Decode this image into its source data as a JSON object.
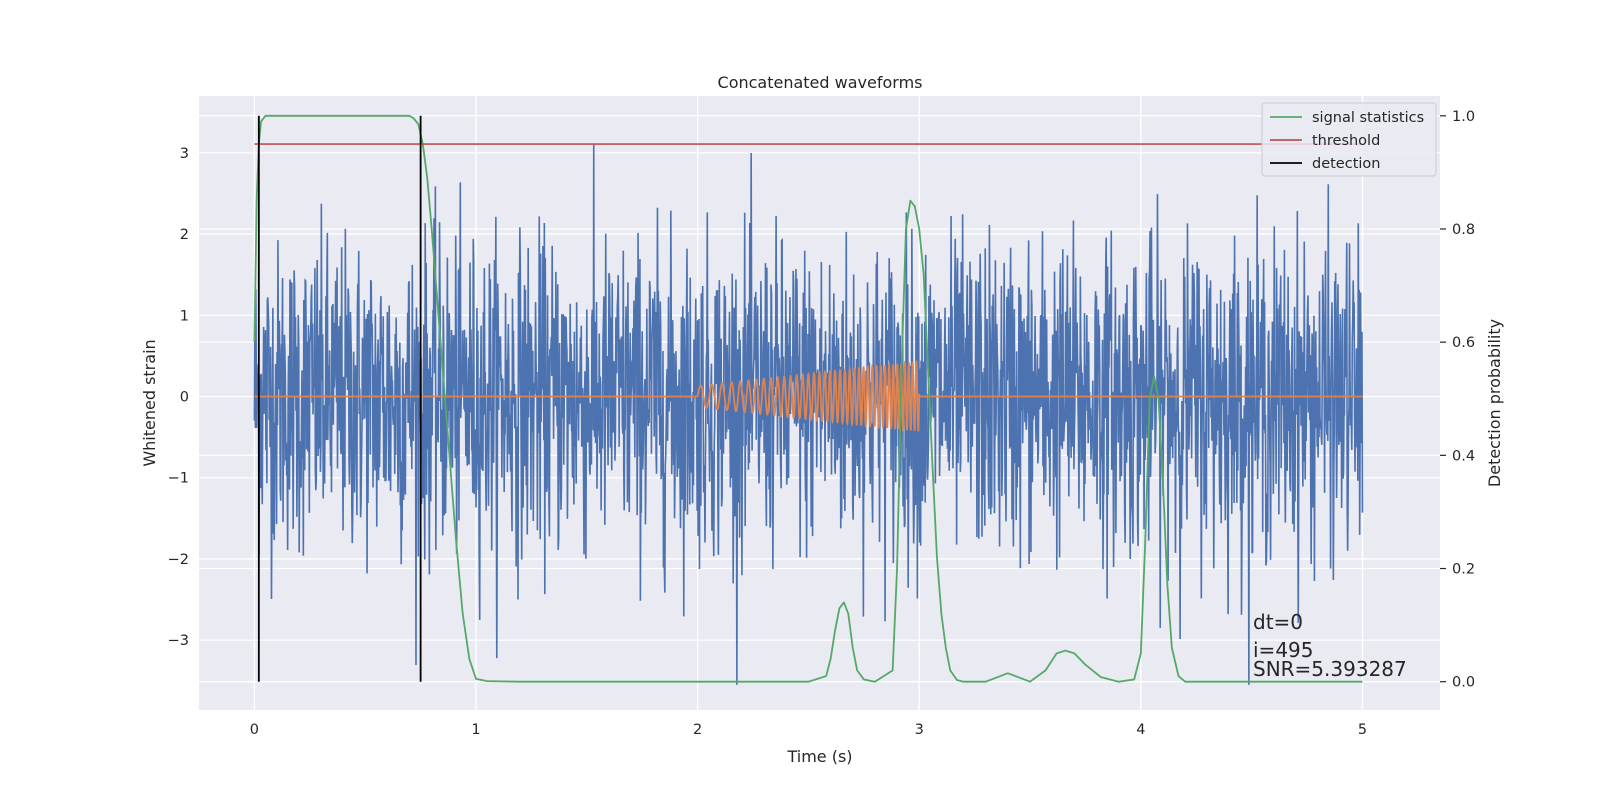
{
  "chart_data": {
    "type": "line",
    "title": "Concatenated waveforms",
    "xlabel": "Time (s)",
    "ylabel": "Whitened strain",
    "y2label": "Detection probability",
    "xlim": [
      -0.25,
      5.35
    ],
    "ylim": [
      -3.86,
      3.7
    ],
    "y2lim": [
      -0.05,
      1.035
    ],
    "xticks": [
      0,
      1,
      2,
      3,
      4,
      5
    ],
    "yticks": [
      -3,
      -2,
      -1,
      0,
      1,
      2,
      3
    ],
    "y2ticks": [
      0.0,
      0.2,
      0.4,
      0.6,
      0.8,
      1.0
    ],
    "xtick_labels": [
      "0",
      "1",
      "2",
      "3",
      "4",
      "5"
    ],
    "ytick_labels": [
      "−3",
      "−2",
      "−1",
      "0",
      "1",
      "2",
      "3"
    ],
    "y2tick_labels": [
      "0.0",
      "0.2",
      "0.4",
      "0.6",
      "0.8",
      "1.0"
    ],
    "grid": true,
    "legend_position": "top-right",
    "legend": [
      {
        "label": "signal statistics",
        "color": "#55a868"
      },
      {
        "label": "threshold",
        "color": "#c44e52"
      },
      {
        "label": "detection",
        "color": "#000000"
      }
    ],
    "series": [
      {
        "role": "whitened noise",
        "color": "#4c72b0",
        "axis": "left",
        "x_range": [
          0,
          5
        ],
        "approx_std": 0.95,
        "approx_range": [
          -3.55,
          3.45
        ]
      },
      {
        "role": "injected chirp",
        "color": "#dd8452",
        "axis": "left",
        "x_range": [
          2,
          3
        ],
        "baseline": 0,
        "amplitude_range": [
          0.13,
          0.43
        ]
      },
      {
        "name": "signal statistics",
        "color": "#55a868",
        "axis": "right",
        "x": [
          0,
          0.005,
          0.01,
          0.02,
          0.03,
          0.05,
          0.1,
          0.6,
          0.7,
          0.72,
          0.74,
          0.76,
          0.78,
          0.8,
          0.82,
          0.85,
          0.88,
          0.91,
          0.94,
          0.97,
          1.0,
          1.05,
          1.2,
          2.0,
          2.5,
          2.58,
          2.6,
          2.62,
          2.64,
          2.66,
          2.68,
          2.7,
          2.72,
          2.75,
          2.8,
          2.88,
          2.9,
          2.92,
          2.94,
          2.96,
          2.98,
          3.0,
          3.02,
          3.04,
          3.06,
          3.08,
          3.1,
          3.12,
          3.14,
          3.17,
          3.2,
          3.3,
          3.4,
          3.5,
          3.57,
          3.62,
          3.66,
          3.7,
          3.75,
          3.82,
          3.9,
          3.97,
          4.0,
          4.02,
          4.04,
          4.06,
          4.08,
          4.1,
          4.12,
          4.14,
          4.17,
          4.2,
          4.3,
          5.0
        ],
        "y": [
          0.6,
          0.72,
          0.85,
          0.95,
          0.99,
          1.0,
          1.0,
          1.0,
          1.0,
          0.995,
          0.985,
          0.95,
          0.89,
          0.8,
          0.7,
          0.55,
          0.4,
          0.25,
          0.12,
          0.04,
          0.005,
          0.001,
          0.0,
          0.0,
          0.0,
          0.01,
          0.04,
          0.09,
          0.13,
          0.14,
          0.12,
          0.06,
          0.02,
          0.004,
          0.0,
          0.02,
          0.2,
          0.55,
          0.8,
          0.85,
          0.84,
          0.8,
          0.72,
          0.55,
          0.38,
          0.22,
          0.12,
          0.06,
          0.02,
          0.003,
          0.0,
          0.0,
          0.015,
          0.0,
          0.02,
          0.05,
          0.055,
          0.05,
          0.03,
          0.008,
          0.0,
          0.004,
          0.05,
          0.25,
          0.5,
          0.54,
          0.5,
          0.35,
          0.17,
          0.06,
          0.01,
          0.0,
          0.0,
          0.0
        ]
      },
      {
        "name": "threshold",
        "color": "#c44e52",
        "axis": "right",
        "x": [
          0,
          5
        ],
        "y": [
          0.95,
          0.95
        ]
      },
      {
        "name": "detection",
        "color": "#000000",
        "axis": "right",
        "type": "vlines",
        "x": [
          0.02,
          0.75
        ],
        "y_range": [
          0.0,
          1.0
        ]
      }
    ],
    "annotations": [
      "dt=0",
      "i=495",
      "SNR=5.393287"
    ]
  }
}
